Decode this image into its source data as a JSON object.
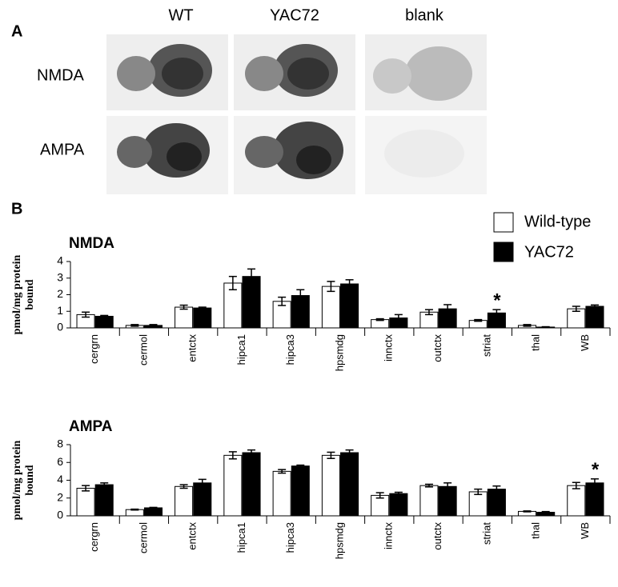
{
  "panel_a": {
    "label": "A",
    "columns": [
      "WT",
      "YAC72",
      "blank"
    ],
    "rows": [
      "NMDA",
      "AMPA"
    ]
  },
  "panel_b": {
    "label": "B"
  },
  "chart_data": [
    {
      "type": "bar",
      "title": "NMDA",
      "ylabel": [
        "pmol/mg protein",
        "bound"
      ],
      "categories": [
        "cergrn",
        "cermol",
        "entctx",
        "hipca1",
        "hipca3",
        "hpsmdg",
        "innctx",
        "outctx",
        "striat",
        "thal",
        "WB"
      ],
      "series": [
        {
          "name": "Wild-type",
          "color": "#ffffff",
          "values": [
            0.8,
            0.15,
            1.25,
            2.7,
            1.6,
            2.5,
            0.5,
            0.95,
            0.45,
            0.15,
            1.15
          ],
          "errors": [
            0.15,
            0.05,
            0.12,
            0.4,
            0.25,
            0.3,
            0.05,
            0.15,
            0.05,
            0.05,
            0.15
          ]
        },
        {
          "name": "YAC72",
          "color": "#000000",
          "values": [
            0.7,
            0.15,
            1.2,
            3.1,
            1.95,
            2.65,
            0.6,
            1.15,
            0.9,
            0.05,
            1.3
          ],
          "errors": [
            0.05,
            0.05,
            0.05,
            0.45,
            0.35,
            0.25,
            0.2,
            0.25,
            0.2,
            0.02,
            0.08
          ]
        }
      ],
      "ylim": [
        0,
        4
      ],
      "yticks": [
        0,
        1,
        2,
        3,
        4
      ],
      "annotations": [
        {
          "text": "*",
          "x": "striat"
        }
      ]
    },
    {
      "type": "bar",
      "title": "AMPA",
      "ylabel": [
        "pmol/mg protein",
        "bound"
      ],
      "categories": [
        "cergrn",
        "cermol",
        "entctx",
        "hipca1",
        "hipca3",
        "hpsmdg",
        "innctx",
        "outctx",
        "striat",
        "thal",
        "WB"
      ],
      "series": [
        {
          "color": "#ffffff",
          "values": [
            3.1,
            0.7,
            3.3,
            6.8,
            5.0,
            6.8,
            2.3,
            3.4,
            2.7,
            0.5,
            3.4
          ],
          "errors": [
            0.3,
            0.05,
            0.2,
            0.4,
            0.2,
            0.35,
            0.3,
            0.15,
            0.3,
            0.05,
            0.35
          ]
        },
        {
          "color": "#000000",
          "values": [
            3.5,
            0.9,
            3.7,
            7.1,
            5.6,
            7.1,
            2.5,
            3.3,
            3.0,
            0.4,
            3.7
          ],
          "errors": [
            0.2,
            0.05,
            0.4,
            0.3,
            0.1,
            0.3,
            0.15,
            0.4,
            0.35,
            0.08,
            0.45
          ]
        }
      ],
      "ylim": [
        0,
        8
      ],
      "yticks": [
        0,
        2,
        4,
        6,
        8
      ],
      "annotations": [
        {
          "text": "*",
          "x": "WB"
        }
      ]
    }
  ]
}
